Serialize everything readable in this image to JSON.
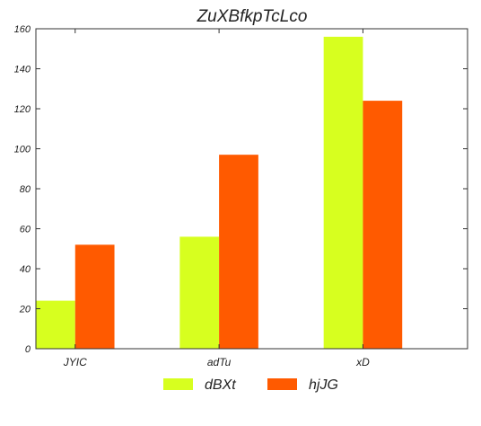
{
  "chart_data": {
    "type": "bar",
    "title": "ZuXBfkpTcLco",
    "xlabel": "",
    "ylabel": "",
    "categories": [
      "JYIC",
      "adTu",
      "xD"
    ],
    "series": [
      {
        "name": "dBXt",
        "values": [
          24,
          56,
          156
        ],
        "color": "#d7ff1f"
      },
      {
        "name": "hjJG",
        "values": [
          52,
          97,
          124
        ],
        "color": "#ff5a00"
      }
    ],
    "ylim": [
      0,
      160
    ],
    "yticks": [
      0,
      20,
      40,
      60,
      80,
      100,
      120,
      140,
      160
    ],
    "grid": false,
    "legend_position": "bottom"
  }
}
